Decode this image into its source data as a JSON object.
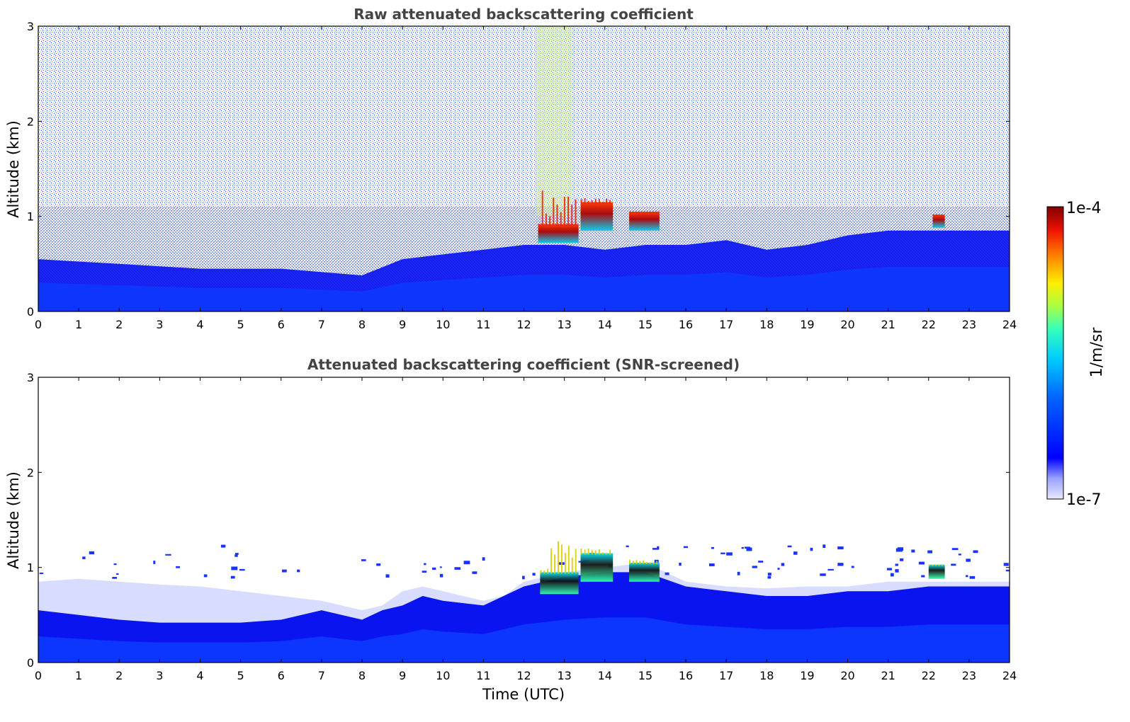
{
  "colors": {
    "background": "#ffffff",
    "noise_blue": "#1a33ff",
    "noise_cyan": "#33ddee",
    "boundary_layer": "#0a14f0",
    "aerosol_light": "#d8dcff",
    "cloud": "#8a0000",
    "text_title": "#444444"
  },
  "colorbar": {
    "label": "1/m/sr",
    "max_label": "1e-4",
    "min_label": "1e-7",
    "scale": "log",
    "colormap": "jet"
  },
  "chart_data": [
    {
      "type": "heatmap",
      "title": "Raw attenuated backscattering coefficient",
      "xlabel": "",
      "ylabel": "Altitude (km)",
      "xlim": [
        0,
        24
      ],
      "ylim": [
        0,
        3
      ],
      "xticks": [
        "0",
        "1",
        "2",
        "3",
        "4",
        "5",
        "6",
        "7",
        "8",
        "9",
        "10",
        "11",
        "12",
        "13",
        "14",
        "15",
        "16",
        "17",
        "18",
        "19",
        "20",
        "21",
        "22",
        "23",
        "24"
      ],
      "yticks": [
        "0",
        "1",
        "2",
        "3"
      ],
      "boundary_layer_top_km": [
        [
          0,
          0.55
        ],
        [
          2,
          0.5
        ],
        [
          4,
          0.45
        ],
        [
          6,
          0.45
        ],
        [
          8,
          0.38
        ],
        [
          9,
          0.55
        ],
        [
          10,
          0.6
        ],
        [
          11,
          0.65
        ],
        [
          12,
          0.7
        ],
        [
          13,
          0.7
        ],
        [
          14,
          0.65
        ],
        [
          15,
          0.7
        ],
        [
          16,
          0.7
        ],
        [
          17,
          0.75
        ],
        [
          18,
          0.65
        ],
        [
          19,
          0.7
        ],
        [
          20,
          0.8
        ],
        [
          21,
          0.85
        ],
        [
          22,
          0.85
        ],
        [
          23,
          0.85
        ],
        [
          24,
          0.85
        ]
      ],
      "clouds": [
        {
          "t_start": 12.35,
          "t_end": 13.35,
          "base_km": 0.72,
          "top_km": 0.92,
          "peak_top_km": 1.3
        },
        {
          "t_start": 13.4,
          "t_end": 14.2,
          "base_km": 0.85,
          "top_km": 1.15,
          "peak_top_km": 1.2
        },
        {
          "t_start": 14.6,
          "t_end": 15.35,
          "base_km": 0.85,
          "top_km": 1.05,
          "peak_top_km": 1.05
        },
        {
          "t_start": 22.1,
          "t_end": 22.4,
          "base_km": 0.88,
          "top_km": 1.02,
          "peak_top_km": 1.02
        }
      ],
      "noise_column": {
        "t_start": 12.3,
        "t_end": 13.2,
        "from_km": 1.0,
        "to_km": 3.0
      }
    },
    {
      "type": "heatmap",
      "title": "Attenuated backscattering coefficient (SNR-screened)",
      "xlabel": "Time (UTC)",
      "ylabel": "Altitude (km)",
      "xlim": [
        0,
        24
      ],
      "ylim": [
        0,
        3
      ],
      "xticks": [
        "0",
        "1",
        "2",
        "3",
        "4",
        "5",
        "6",
        "7",
        "8",
        "9",
        "10",
        "11",
        "12",
        "13",
        "14",
        "15",
        "16",
        "17",
        "18",
        "19",
        "20",
        "21",
        "22",
        "23",
        "24"
      ],
      "yticks": [
        "0",
        "1",
        "2",
        "3"
      ],
      "aerosol_layer_top_km": [
        [
          0,
          0.85
        ],
        [
          1,
          0.88
        ],
        [
          2,
          0.85
        ],
        [
          3,
          0.82
        ],
        [
          4,
          0.8
        ],
        [
          5,
          0.75
        ],
        [
          6,
          0.7
        ],
        [
          7,
          0.65
        ],
        [
          8,
          0.55
        ],
        [
          8.5,
          0.6
        ],
        [
          9,
          0.75
        ],
        [
          9.5,
          0.8
        ],
        [
          10,
          0.75
        ],
        [
          11,
          0.65
        ],
        [
          11.5,
          0.7
        ],
        [
          12,
          0.85
        ],
        [
          13,
          0.95
        ],
        [
          14,
          1.0
        ],
        [
          15,
          1.05
        ],
        [
          15.5,
          0.95
        ],
        [
          16,
          0.85
        ],
        [
          17,
          0.8
        ],
        [
          18,
          0.78
        ],
        [
          19,
          0.8
        ],
        [
          20,
          0.8
        ],
        [
          21,
          0.85
        ],
        [
          22,
          0.85
        ],
        [
          23,
          0.85
        ],
        [
          24,
          0.85
        ]
      ],
      "dense_layer_top_km": [
        [
          0,
          0.55
        ],
        [
          1,
          0.5
        ],
        [
          2,
          0.45
        ],
        [
          3,
          0.42
        ],
        [
          4,
          0.42
        ],
        [
          5,
          0.42
        ],
        [
          6,
          0.45
        ],
        [
          7,
          0.55
        ],
        [
          8,
          0.45
        ],
        [
          8.5,
          0.55
        ],
        [
          9,
          0.6
        ],
        [
          9.5,
          0.7
        ],
        [
          10,
          0.65
        ],
        [
          11,
          0.6
        ],
        [
          12,
          0.8
        ],
        [
          13,
          0.9
        ],
        [
          14,
          0.95
        ],
        [
          15,
          0.95
        ],
        [
          16,
          0.8
        ],
        [
          17,
          0.75
        ],
        [
          18,
          0.7
        ],
        [
          19,
          0.7
        ],
        [
          20,
          0.75
        ],
        [
          21,
          0.75
        ],
        [
          22,
          0.8
        ],
        [
          23,
          0.8
        ],
        [
          24,
          0.8
        ]
      ],
      "clouds": [
        {
          "t_start": 12.4,
          "t_end": 13.35,
          "base_km": 0.72,
          "top_km": 0.95,
          "peak_top_km": 1.35
        },
        {
          "t_start": 13.4,
          "t_end": 14.2,
          "base_km": 0.85,
          "top_km": 1.15,
          "peak_top_km": 1.2
        },
        {
          "t_start": 14.6,
          "t_end": 15.35,
          "base_km": 0.85,
          "top_km": 1.05,
          "peak_top_km": 1.1
        },
        {
          "t_start": 22.0,
          "t_end": 22.4,
          "base_km": 0.88,
          "top_km": 1.03,
          "peak_top_km": 1.03
        }
      ]
    }
  ]
}
